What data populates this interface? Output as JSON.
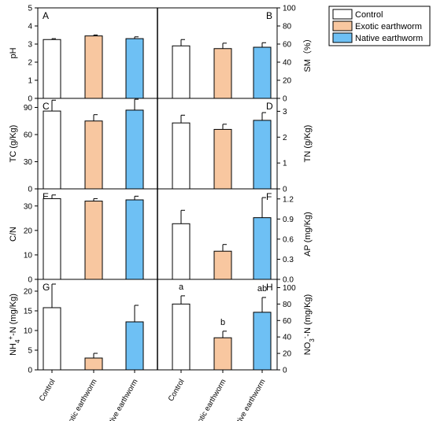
{
  "chart_data": [
    {
      "type": "bar",
      "panel": "A",
      "ylabel": "pH",
      "ylim": [
        0,
        5
      ],
      "yticks": [
        0,
        1,
        2,
        3,
        4,
        5
      ],
      "categories": [
        "Control",
        "Exotic earthworm",
        "Native earthworm"
      ],
      "values": [
        3.25,
        3.45,
        3.3
      ],
      "errors": [
        0.05,
        0.05,
        0.1
      ],
      "sig_labels": [
        "",
        "",
        ""
      ]
    },
    {
      "type": "bar",
      "panel": "B",
      "ylabel": "SM (%)",
      "ylim": [
        0,
        100
      ],
      "yticks": [
        0,
        20,
        40,
        60,
        80,
        100
      ],
      "categories": [
        "Control",
        "Exotic earthworm",
        "Native earthworm"
      ],
      "values": [
        58,
        55,
        56.5
      ],
      "errors": [
        7,
        6,
        5
      ],
      "sig_labels": [
        "",
        "",
        ""
      ]
    },
    {
      "type": "bar",
      "panel": "C",
      "ylabel": "TC (g/Kg)",
      "ylim": [
        0,
        100
      ],
      "yticks": [
        0,
        30,
        60,
        90
      ],
      "categories": [
        "Control",
        "Exotic earthworm",
        "Native earthworm"
      ],
      "values": [
        86,
        75,
        87
      ],
      "errors": [
        12,
        7,
        12
      ],
      "sig_labels": [
        "",
        "",
        ""
      ]
    },
    {
      "type": "bar",
      "panel": "D",
      "ylabel": "TN (g/Kg)",
      "ylim": [
        0,
        3.5
      ],
      "yticks": [
        0,
        1,
        2,
        3
      ],
      "categories": [
        "Control",
        "Exotic earthworm",
        "Native earthworm"
      ],
      "values": [
        2.55,
        2.3,
        2.65
      ],
      "errors": [
        0.3,
        0.2,
        0.3
      ],
      "sig_labels": [
        "",
        "",
        ""
      ]
    },
    {
      "type": "bar",
      "panel": "E",
      "ylabel": "C/N",
      "ylim": [
        0,
        37
      ],
      "yticks": [
        0,
        10,
        20,
        30
      ],
      "categories": [
        "Control",
        "Exotic earthworm",
        "Native earthworm"
      ],
      "values": [
        33,
        32,
        32.5
      ],
      "errors": [
        1.5,
        1,
        1.5
      ],
      "sig_labels": [
        "",
        "",
        ""
      ]
    },
    {
      "type": "bar",
      "panel": "F",
      "ylabel": "AP (mg/Kg)",
      "ylim": [
        0,
        1.35
      ],
      "yticks": [
        0.0,
        0.3,
        0.6,
        0.9,
        1.2
      ],
      "tick_labels": [
        "0.0",
        "0.3",
        "0.6",
        "0.9",
        "1.2"
      ],
      "categories": [
        "Control",
        "Exotic earthworm",
        "Native earthworm"
      ],
      "values": [
        0.83,
        0.42,
        0.92
      ],
      "errors": [
        0.2,
        0.1,
        0.3
      ],
      "sig_labels": [
        "",
        "",
        ""
      ]
    },
    {
      "type": "bar",
      "panel": "G",
      "ylabel": "NH4+-N (mg/Kg)",
      "ylim": [
        0,
        23
      ],
      "yticks": [
        0,
        5,
        10,
        15,
        20
      ],
      "categories": [
        "Control",
        "Exotic earthworm",
        "Native earthworm"
      ],
      "values": [
        15.8,
        3.0,
        12.2
      ],
      "errors": [
        6,
        1.2,
        4.2
      ],
      "sig_labels": [
        "",
        "",
        ""
      ]
    },
    {
      "type": "bar",
      "panel": "H",
      "ylabel": "NO3--N (mg/Kg)",
      "ylim": [
        0,
        110
      ],
      "yticks": [
        0,
        20,
        40,
        60,
        80,
        100
      ],
      "categories": [
        "Control",
        "Exotic earthworm",
        "Native earthworm"
      ],
      "values": [
        80,
        39,
        70
      ],
      "errors": [
        10,
        8,
        18
      ],
      "sig_labels": [
        "a",
        "b",
        "ab"
      ]
    }
  ],
  "legend": [
    {
      "label": "Control",
      "color": "#ffffff"
    },
    {
      "label": "Exotic earthworm",
      "color": "#f8c7a0"
    },
    {
      "label": "Native earthworm",
      "color": "#6ec0f4"
    }
  ],
  "x_categories": [
    "Control",
    "Exotic earthworm",
    "Native earthworm"
  ],
  "colors": {
    "control": "#ffffff",
    "exotic": "#f8c7a0",
    "native": "#6ec0f4",
    "axis": "#000000"
  }
}
